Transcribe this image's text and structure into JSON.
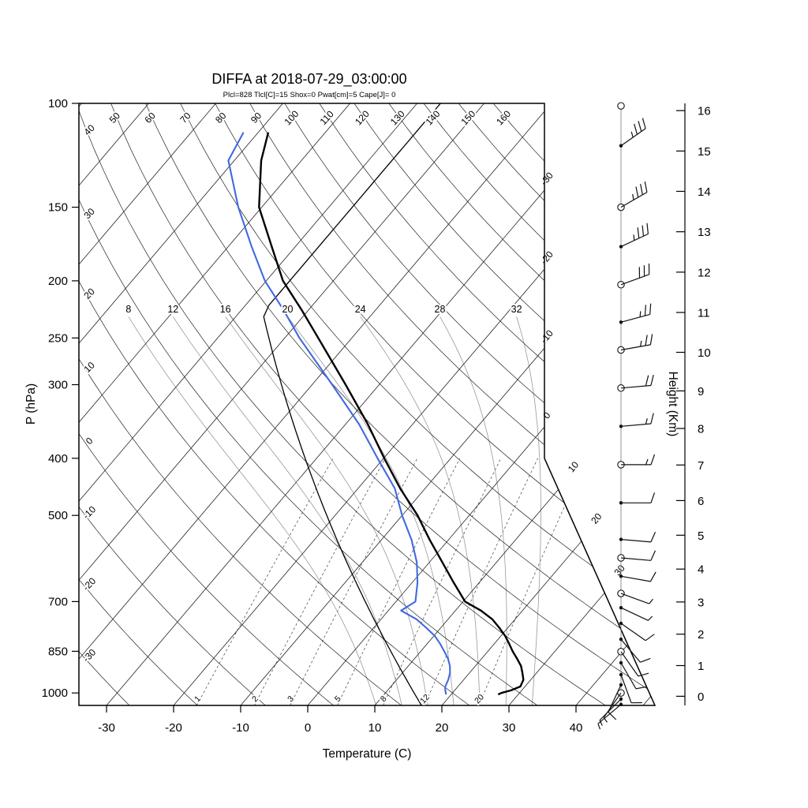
{
  "title": "DIFFA at 2018-07-29_03:00:00",
  "subtitle": "Plcl=828 Tlcl[C]=15 Shox=0 Pwat[cm]=5 Cape[J]= 0",
  "parameters": {
    "Plcl": 828,
    "Tlcl_C": 15,
    "Shox": 0,
    "Pwat_cm": 5,
    "Cape_J": 0
  },
  "axes": {
    "pressure": {
      "label": "P (hPa)",
      "ticks": [
        100,
        150,
        200,
        250,
        300,
        400,
        500,
        700,
        850,
        1000
      ]
    },
    "temperature": {
      "label": "Temperature (C)",
      "ticks": [
        -30,
        -20,
        -10,
        0,
        10,
        20,
        30,
        40
      ]
    },
    "height": {
      "label": "Height (Km)",
      "ticks": [
        0,
        1,
        2,
        3,
        4,
        5,
        6,
        7,
        8,
        9,
        10,
        11,
        12,
        13,
        14,
        15,
        16
      ]
    }
  },
  "colors": {
    "temperature_line": "#000000",
    "dewpoint_line": "#4169E1",
    "reference_line": "#000000",
    "isotherm_line": "#222222",
    "dry_adiabat_line": "#222222",
    "moist_adiabat_line": "#999999",
    "mixing_ratio_line": "#555555",
    "frame": "#000000",
    "subtitle": "#C85A19",
    "wind": "#111111"
  },
  "chart_data": {
    "type": "skewt-log-p",
    "pressure_range_hPa": [
      100,
      1050
    ],
    "isotherms_C": {
      "start": -110,
      "end": 50,
      "step": 10
    },
    "isotherm_edge_labels": [
      -30,
      -20,
      -10,
      0,
      10,
      20,
      30
    ],
    "dry_adiabats_C": {
      "start": -30,
      "end": 160,
      "step": 10
    },
    "dry_adiabat_top_labels": [
      50,
      60,
      70,
      80,
      90,
      100,
      110,
      120,
      130,
      140,
      150,
      160
    ],
    "dry_adiabat_left_labels": [
      40,
      30,
      20,
      10,
      0,
      -10,
      -20,
      -30
    ],
    "moist_adiabats_C": [
      8,
      12,
      16,
      20,
      24,
      28,
      32
    ],
    "mixing_ratios_g_kg": [
      1,
      2,
      3,
      5,
      8,
      12,
      20
    ],
    "sounding": {
      "pressure_hPa": [
        1006,
        1000,
        990,
        975,
        950,
        925,
        900,
        875,
        850,
        825,
        800,
        775,
        750,
        725,
        700,
        650,
        600,
        550,
        500,
        450,
        400,
        350,
        300,
        250,
        225,
        200,
        175,
        150,
        125,
        112
      ],
      "temperature_C": [
        27.0,
        27.3,
        28.4,
        29.3,
        28.9,
        27.9,
        26.8,
        25.3,
        23.7,
        22.2,
        20.6,
        18.7,
        16.6,
        13.8,
        10.3,
        6.2,
        1.9,
        -2.8,
        -7.7,
        -13.7,
        -19.9,
        -26.7,
        -35.0,
        -45.0,
        -50.8,
        -57.5,
        -63.5,
        -70.4,
        -76.0,
        -78.5
      ],
      "dewpoint_C": [
        19.2,
        19.0,
        18.6,
        18.1,
        17.7,
        17.1,
        16.2,
        15.0,
        13.5,
        11.9,
        10.1,
        7.8,
        5.3,
        1.9,
        2.9,
        0.8,
        -1.9,
        -5.5,
        -10.0,
        -14.5,
        -20.9,
        -28.0,
        -37.0,
        -47.8,
        -53.5,
        -60.2,
        -66.5,
        -73.5,
        -80.9,
        -82.2
      ]
    },
    "reference_profile": "US Standard Atmosphere",
    "winds": [
      {
        "p": 1046,
        "dir_deg": 230,
        "speed_kt": 5,
        "open": false
      },
      {
        "p": 1024,
        "dir_deg": 225,
        "speed_kt": 5,
        "open": false
      },
      {
        "p": 1000,
        "dir_deg": 215,
        "speed_kt": 5,
        "open": true
      },
      {
        "p": 969,
        "dir_deg": 205,
        "speed_kt": 8,
        "open": false
      },
      {
        "p": 931,
        "dir_deg": 160,
        "speed_kt": 10,
        "open": false
      },
      {
        "p": 889,
        "dir_deg": 150,
        "speed_kt": 10,
        "open": false
      },
      {
        "p": 851,
        "dir_deg": 145,
        "speed_kt": 10,
        "open": true
      },
      {
        "p": 811,
        "dir_deg": 140,
        "speed_kt": 10,
        "open": false
      },
      {
        "p": 762,
        "dir_deg": 125,
        "speed_kt": 10,
        "open": false
      },
      {
        "p": 717,
        "dir_deg": 115,
        "speed_kt": 5,
        "open": false
      },
      {
        "p": 678,
        "dir_deg": 110,
        "speed_kt": 5,
        "open": true
      },
      {
        "p": 634,
        "dir_deg": 100,
        "speed_kt": 10,
        "open": false
      },
      {
        "p": 590,
        "dir_deg": 95,
        "speed_kt": 10,
        "open": true
      },
      {
        "p": 549,
        "dir_deg": 95,
        "speed_kt": 10,
        "open": false
      },
      {
        "p": 476,
        "dir_deg": 90,
        "speed_kt": 10,
        "open": false
      },
      {
        "p": 410,
        "dir_deg": 90,
        "speed_kt": 15,
        "open": true
      },
      {
        "p": 353,
        "dir_deg": 85,
        "speed_kt": 15,
        "open": false
      },
      {
        "p": 304,
        "dir_deg": 85,
        "speed_kt": 20,
        "open": true
      },
      {
        "p": 262,
        "dir_deg": 80,
        "speed_kt": 25,
        "open": true
      },
      {
        "p": 235,
        "dir_deg": 75,
        "speed_kt": 25,
        "open": false
      },
      {
        "p": 203,
        "dir_deg": 70,
        "speed_kt": 30,
        "open": true
      },
      {
        "p": 175,
        "dir_deg": 65,
        "speed_kt": 35,
        "open": false
      },
      {
        "p": 150,
        "dir_deg": 60,
        "speed_kt": 35,
        "open": true
      },
      {
        "p": 118,
        "dir_deg": 55,
        "speed_kt": 35,
        "open": false
      },
      {
        "p": 101,
        "dir_deg": 0,
        "speed_kt": 0,
        "open": true
      }
    ]
  }
}
